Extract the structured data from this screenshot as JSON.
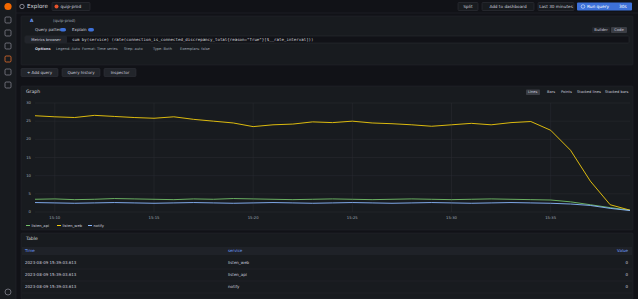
{
  "header": {
    "title": "Explore",
    "datasource": "quip-prod",
    "buttons": [
      "Split",
      "Add to dashboard",
      "Last 30 minutes"
    ],
    "run": "Run query",
    "interval": "30s"
  },
  "query": {
    "ref": "A",
    "datasource": "(quip-prod)",
    "toggles": [
      "Query patterns",
      "Explain"
    ],
    "modes": [
      "Builder",
      "Code"
    ],
    "browser": "Metrics browser",
    "expr": "sum by(service) (rate(connection_is_connected_discrepancy_total{reason=\"True\"}[$__rate_interval]))",
    "options": [
      "Options",
      "Legend: Auto",
      "Format: Time series",
      "Step: auto",
      "Type: Both",
      "Exemplars: false"
    ],
    "actions": [
      "+ Add query",
      "Query history",
      "Inspector"
    ]
  },
  "graph": {
    "title": "Graph",
    "view_modes": [
      "Lines",
      "Bars",
      "Points",
      "Stacked lines",
      "Stacked bars"
    ]
  },
  "chart_data": {
    "type": "line",
    "x": [
      9,
      10,
      11,
      12,
      13,
      14,
      15,
      16,
      17,
      18,
      19,
      20,
      21,
      22,
      23,
      24,
      25,
      26,
      27,
      28,
      29,
      30,
      31,
      32,
      33,
      34,
      35,
      36,
      37,
      38,
      39
    ],
    "xlim": [
      9,
      39
    ],
    "xticks": [
      {
        "value": 10,
        "label": "15:10"
      },
      {
        "value": 15,
        "label": "15:15"
      },
      {
        "value": 20,
        "label": "15:20"
      },
      {
        "value": 25,
        "label": "15:25"
      },
      {
        "value": 30,
        "label": "15:30"
      },
      {
        "value": 35,
        "label": "15:35"
      }
    ],
    "ylim": [
      0,
      30
    ],
    "yticks": [
      0,
      5,
      10,
      15,
      20,
      25,
      30
    ],
    "grid": true,
    "legend": "bottom",
    "series": [
      {
        "name": "listen_api",
        "color": "#73bf69",
        "values": [
          3.5,
          3.6,
          3.4,
          3.5,
          3.7,
          3.6,
          3.5,
          3.4,
          3.6,
          3.5,
          3.7,
          3.6,
          3.5,
          3.4,
          3.5,
          3.6,
          3.5,
          3.4,
          3.5,
          3.6,
          3.5,
          3.4,
          3.5,
          3.6,
          3.5,
          3.4,
          3.3,
          2.8,
          2.0,
          1.2,
          0.5
        ]
      },
      {
        "name": "listen_web",
        "color": "#f2cc0c",
        "values": [
          26.5,
          26.2,
          26.0,
          26.6,
          26.3,
          26.0,
          25.8,
          26.2,
          25.5,
          25.0,
          24.5,
          23.5,
          24.0,
          24.2,
          24.8,
          24.6,
          25.0,
          24.5,
          24.3,
          24.0,
          23.6,
          24.0,
          24.4,
          24.0,
          24.6,
          24.9,
          22.5,
          17.0,
          8.5,
          2.0,
          0.5
        ]
      },
      {
        "name": "notify",
        "color": "#8ab8ff",
        "values": [
          2.6,
          2.5,
          2.4,
          2.5,
          2.6,
          2.5,
          2.4,
          2.5,
          2.6,
          2.5,
          2.4,
          2.5,
          2.6,
          2.5,
          2.4,
          2.5,
          2.6,
          2.5,
          2.4,
          2.5,
          2.6,
          2.5,
          2.4,
          2.5,
          2.6,
          2.5,
          2.4,
          2.2,
          1.8,
          1.0,
          0.4
        ]
      }
    ]
  },
  "table": {
    "title": "Table",
    "columns": [
      "Time",
      "service",
      "Value"
    ],
    "rows": [
      [
        "2023-08-09 15:39:03.613",
        "listen_web",
        0
      ],
      [
        "2023-08-09 15:39:03.613",
        "listen_api",
        0
      ],
      [
        "2023-08-09 15:39:03.613",
        "notify",
        0
      ]
    ]
  }
}
